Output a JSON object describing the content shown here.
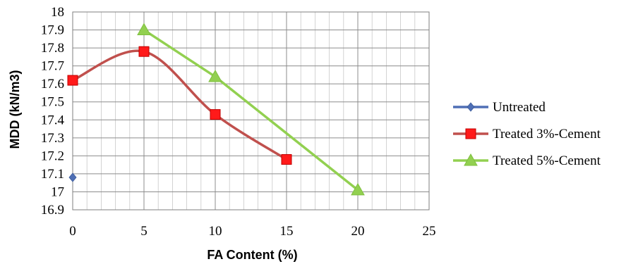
{
  "chart_data": {
    "type": "line",
    "title": "",
    "xlabel": "FA Content (%)",
    "ylabel": "MDD (kN/m3)",
    "xlim": [
      0,
      25
    ],
    "ylim": [
      16.9,
      18
    ],
    "x_ticks": [
      "0",
      "5",
      "10",
      "15",
      "20",
      "25"
    ],
    "y_ticks": [
      "16.9",
      "17",
      "17.1",
      "17.2",
      "17.3",
      "17.4",
      "17.5",
      "17.6",
      "17.7",
      "17.8",
      "17.9",
      "18"
    ],
    "grid": true,
    "legend_position": "right",
    "series": [
      {
        "name": "Untreated",
        "color": "#4f6fb5",
        "marker": "diamond",
        "smooth": false,
        "points": [
          [
            0,
            17.08
          ]
        ]
      },
      {
        "name": "Treated 3%-Cement",
        "color": "#c0504d",
        "marker": "square",
        "smooth": true,
        "points": [
          [
            0,
            17.62
          ],
          [
            5,
            17.78
          ],
          [
            10,
            17.43
          ],
          [
            15,
            17.18
          ]
        ]
      },
      {
        "name": "Treated 5%-Cement",
        "color": "#92d050",
        "marker": "triangle",
        "smooth": false,
        "points": [
          [
            5,
            17.9
          ],
          [
            10,
            17.64
          ],
          [
            20,
            17.01
          ]
        ]
      }
    ]
  }
}
